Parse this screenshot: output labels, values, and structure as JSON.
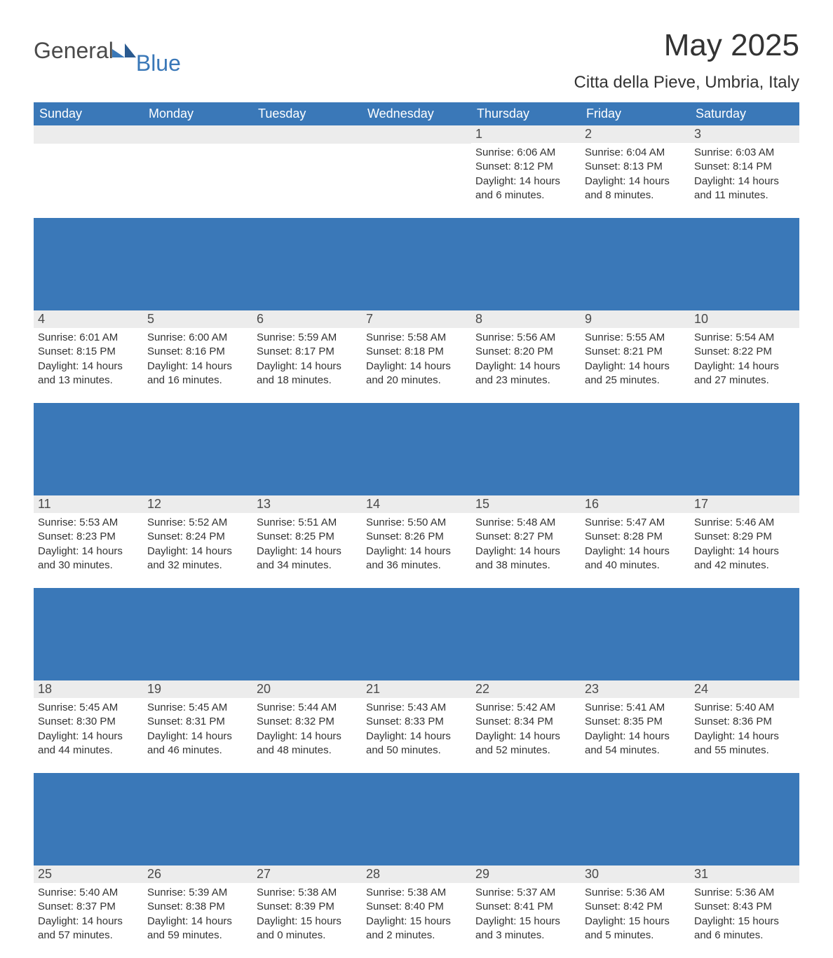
{
  "logo": {
    "word1": "General",
    "word2": "Blue"
  },
  "title": "May 2025",
  "location": "Citta della Pieve, Umbria, Italy",
  "colors": {
    "header_bg": "#3a78b8",
    "header_text": "#ffffff",
    "daynum_bg": "#ececec",
    "body_bg": "#ffffff",
    "text": "#333333",
    "logo_gray": "#4a4a4a",
    "logo_blue": "#3a78b8"
  },
  "day_headers": [
    "Sunday",
    "Monday",
    "Tuesday",
    "Wednesday",
    "Thursday",
    "Friday",
    "Saturday"
  ],
  "first_weekday_index": 4,
  "weeks": [
    [
      null,
      null,
      null,
      null,
      {
        "n": "1",
        "sunrise": "Sunrise: 6:06 AM",
        "sunset": "Sunset: 8:12 PM",
        "daylight": "Daylight: 14 hours and 6 minutes."
      },
      {
        "n": "2",
        "sunrise": "Sunrise: 6:04 AM",
        "sunset": "Sunset: 8:13 PM",
        "daylight": "Daylight: 14 hours and 8 minutes."
      },
      {
        "n": "3",
        "sunrise": "Sunrise: 6:03 AM",
        "sunset": "Sunset: 8:14 PM",
        "daylight": "Daylight: 14 hours and 11 minutes."
      }
    ],
    [
      {
        "n": "4",
        "sunrise": "Sunrise: 6:01 AM",
        "sunset": "Sunset: 8:15 PM",
        "daylight": "Daylight: 14 hours and 13 minutes."
      },
      {
        "n": "5",
        "sunrise": "Sunrise: 6:00 AM",
        "sunset": "Sunset: 8:16 PM",
        "daylight": "Daylight: 14 hours and 16 minutes."
      },
      {
        "n": "6",
        "sunrise": "Sunrise: 5:59 AM",
        "sunset": "Sunset: 8:17 PM",
        "daylight": "Daylight: 14 hours and 18 minutes."
      },
      {
        "n": "7",
        "sunrise": "Sunrise: 5:58 AM",
        "sunset": "Sunset: 8:18 PM",
        "daylight": "Daylight: 14 hours and 20 minutes."
      },
      {
        "n": "8",
        "sunrise": "Sunrise: 5:56 AM",
        "sunset": "Sunset: 8:20 PM",
        "daylight": "Daylight: 14 hours and 23 minutes."
      },
      {
        "n": "9",
        "sunrise": "Sunrise: 5:55 AM",
        "sunset": "Sunset: 8:21 PM",
        "daylight": "Daylight: 14 hours and 25 minutes."
      },
      {
        "n": "10",
        "sunrise": "Sunrise: 5:54 AM",
        "sunset": "Sunset: 8:22 PM",
        "daylight": "Daylight: 14 hours and 27 minutes."
      }
    ],
    [
      {
        "n": "11",
        "sunrise": "Sunrise: 5:53 AM",
        "sunset": "Sunset: 8:23 PM",
        "daylight": "Daylight: 14 hours and 30 minutes."
      },
      {
        "n": "12",
        "sunrise": "Sunrise: 5:52 AM",
        "sunset": "Sunset: 8:24 PM",
        "daylight": "Daylight: 14 hours and 32 minutes."
      },
      {
        "n": "13",
        "sunrise": "Sunrise: 5:51 AM",
        "sunset": "Sunset: 8:25 PM",
        "daylight": "Daylight: 14 hours and 34 minutes."
      },
      {
        "n": "14",
        "sunrise": "Sunrise: 5:50 AM",
        "sunset": "Sunset: 8:26 PM",
        "daylight": "Daylight: 14 hours and 36 minutes."
      },
      {
        "n": "15",
        "sunrise": "Sunrise: 5:48 AM",
        "sunset": "Sunset: 8:27 PM",
        "daylight": "Daylight: 14 hours and 38 minutes."
      },
      {
        "n": "16",
        "sunrise": "Sunrise: 5:47 AM",
        "sunset": "Sunset: 8:28 PM",
        "daylight": "Daylight: 14 hours and 40 minutes."
      },
      {
        "n": "17",
        "sunrise": "Sunrise: 5:46 AM",
        "sunset": "Sunset: 8:29 PM",
        "daylight": "Daylight: 14 hours and 42 minutes."
      }
    ],
    [
      {
        "n": "18",
        "sunrise": "Sunrise: 5:45 AM",
        "sunset": "Sunset: 8:30 PM",
        "daylight": "Daylight: 14 hours and 44 minutes."
      },
      {
        "n": "19",
        "sunrise": "Sunrise: 5:45 AM",
        "sunset": "Sunset: 8:31 PM",
        "daylight": "Daylight: 14 hours and 46 minutes."
      },
      {
        "n": "20",
        "sunrise": "Sunrise: 5:44 AM",
        "sunset": "Sunset: 8:32 PM",
        "daylight": "Daylight: 14 hours and 48 minutes."
      },
      {
        "n": "21",
        "sunrise": "Sunrise: 5:43 AM",
        "sunset": "Sunset: 8:33 PM",
        "daylight": "Daylight: 14 hours and 50 minutes."
      },
      {
        "n": "22",
        "sunrise": "Sunrise: 5:42 AM",
        "sunset": "Sunset: 8:34 PM",
        "daylight": "Daylight: 14 hours and 52 minutes."
      },
      {
        "n": "23",
        "sunrise": "Sunrise: 5:41 AM",
        "sunset": "Sunset: 8:35 PM",
        "daylight": "Daylight: 14 hours and 54 minutes."
      },
      {
        "n": "24",
        "sunrise": "Sunrise: 5:40 AM",
        "sunset": "Sunset: 8:36 PM",
        "daylight": "Daylight: 14 hours and 55 minutes."
      }
    ],
    [
      {
        "n": "25",
        "sunrise": "Sunrise: 5:40 AM",
        "sunset": "Sunset: 8:37 PM",
        "daylight": "Daylight: 14 hours and 57 minutes."
      },
      {
        "n": "26",
        "sunrise": "Sunrise: 5:39 AM",
        "sunset": "Sunset: 8:38 PM",
        "daylight": "Daylight: 14 hours and 59 minutes."
      },
      {
        "n": "27",
        "sunrise": "Sunrise: 5:38 AM",
        "sunset": "Sunset: 8:39 PM",
        "daylight": "Daylight: 15 hours and 0 minutes."
      },
      {
        "n": "28",
        "sunrise": "Sunrise: 5:38 AM",
        "sunset": "Sunset: 8:40 PM",
        "daylight": "Daylight: 15 hours and 2 minutes."
      },
      {
        "n": "29",
        "sunrise": "Sunrise: 5:37 AM",
        "sunset": "Sunset: 8:41 PM",
        "daylight": "Daylight: 15 hours and 3 minutes."
      },
      {
        "n": "30",
        "sunrise": "Sunrise: 5:36 AM",
        "sunset": "Sunset: 8:42 PM",
        "daylight": "Daylight: 15 hours and 5 minutes."
      },
      {
        "n": "31",
        "sunrise": "Sunrise: 5:36 AM",
        "sunset": "Sunset: 8:43 PM",
        "daylight": "Daylight: 15 hours and 6 minutes."
      }
    ]
  ]
}
